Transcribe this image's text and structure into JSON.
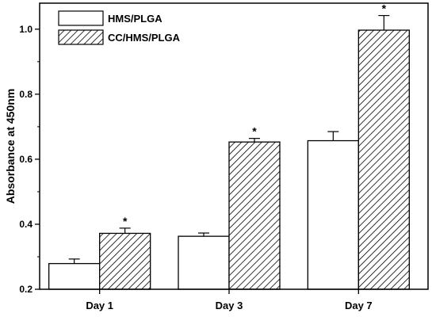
{
  "chart_data": {
    "type": "bar",
    "categories": [
      "Day 1",
      "Day 3",
      "Day 7"
    ],
    "series": [
      {
        "name": "HMS/PLGA",
        "values": [
          0.279,
          0.363,
          0.657
        ],
        "errors": [
          0.014,
          0.01,
          0.028
        ],
        "fill": "#ffffff",
        "pattern": "none",
        "significance": [
          "",
          "",
          ""
        ]
      },
      {
        "name": "CC/HMS/PLGA",
        "values": [
          0.372,
          0.653,
          0.997
        ],
        "errors": [
          0.016,
          0.011,
          0.045
        ],
        "fill": "#ffffff",
        "pattern": "diagonal-hatch",
        "significance": [
          "*",
          "*",
          "*"
        ]
      }
    ],
    "ylabel": "Absorbance at 450nm",
    "ylim": [
      0.2,
      1.08
    ],
    "yticks": [
      0.2,
      0.4,
      0.6,
      0.8,
      1.0
    ],
    "ytick_labels": [
      "0.2",
      "0.4",
      "0.6",
      "0.8",
      "1.0"
    ],
    "grid": false,
    "legend_position": "top-left",
    "colors": {
      "stroke": "#000000",
      "background": "#ffffff"
    }
  }
}
